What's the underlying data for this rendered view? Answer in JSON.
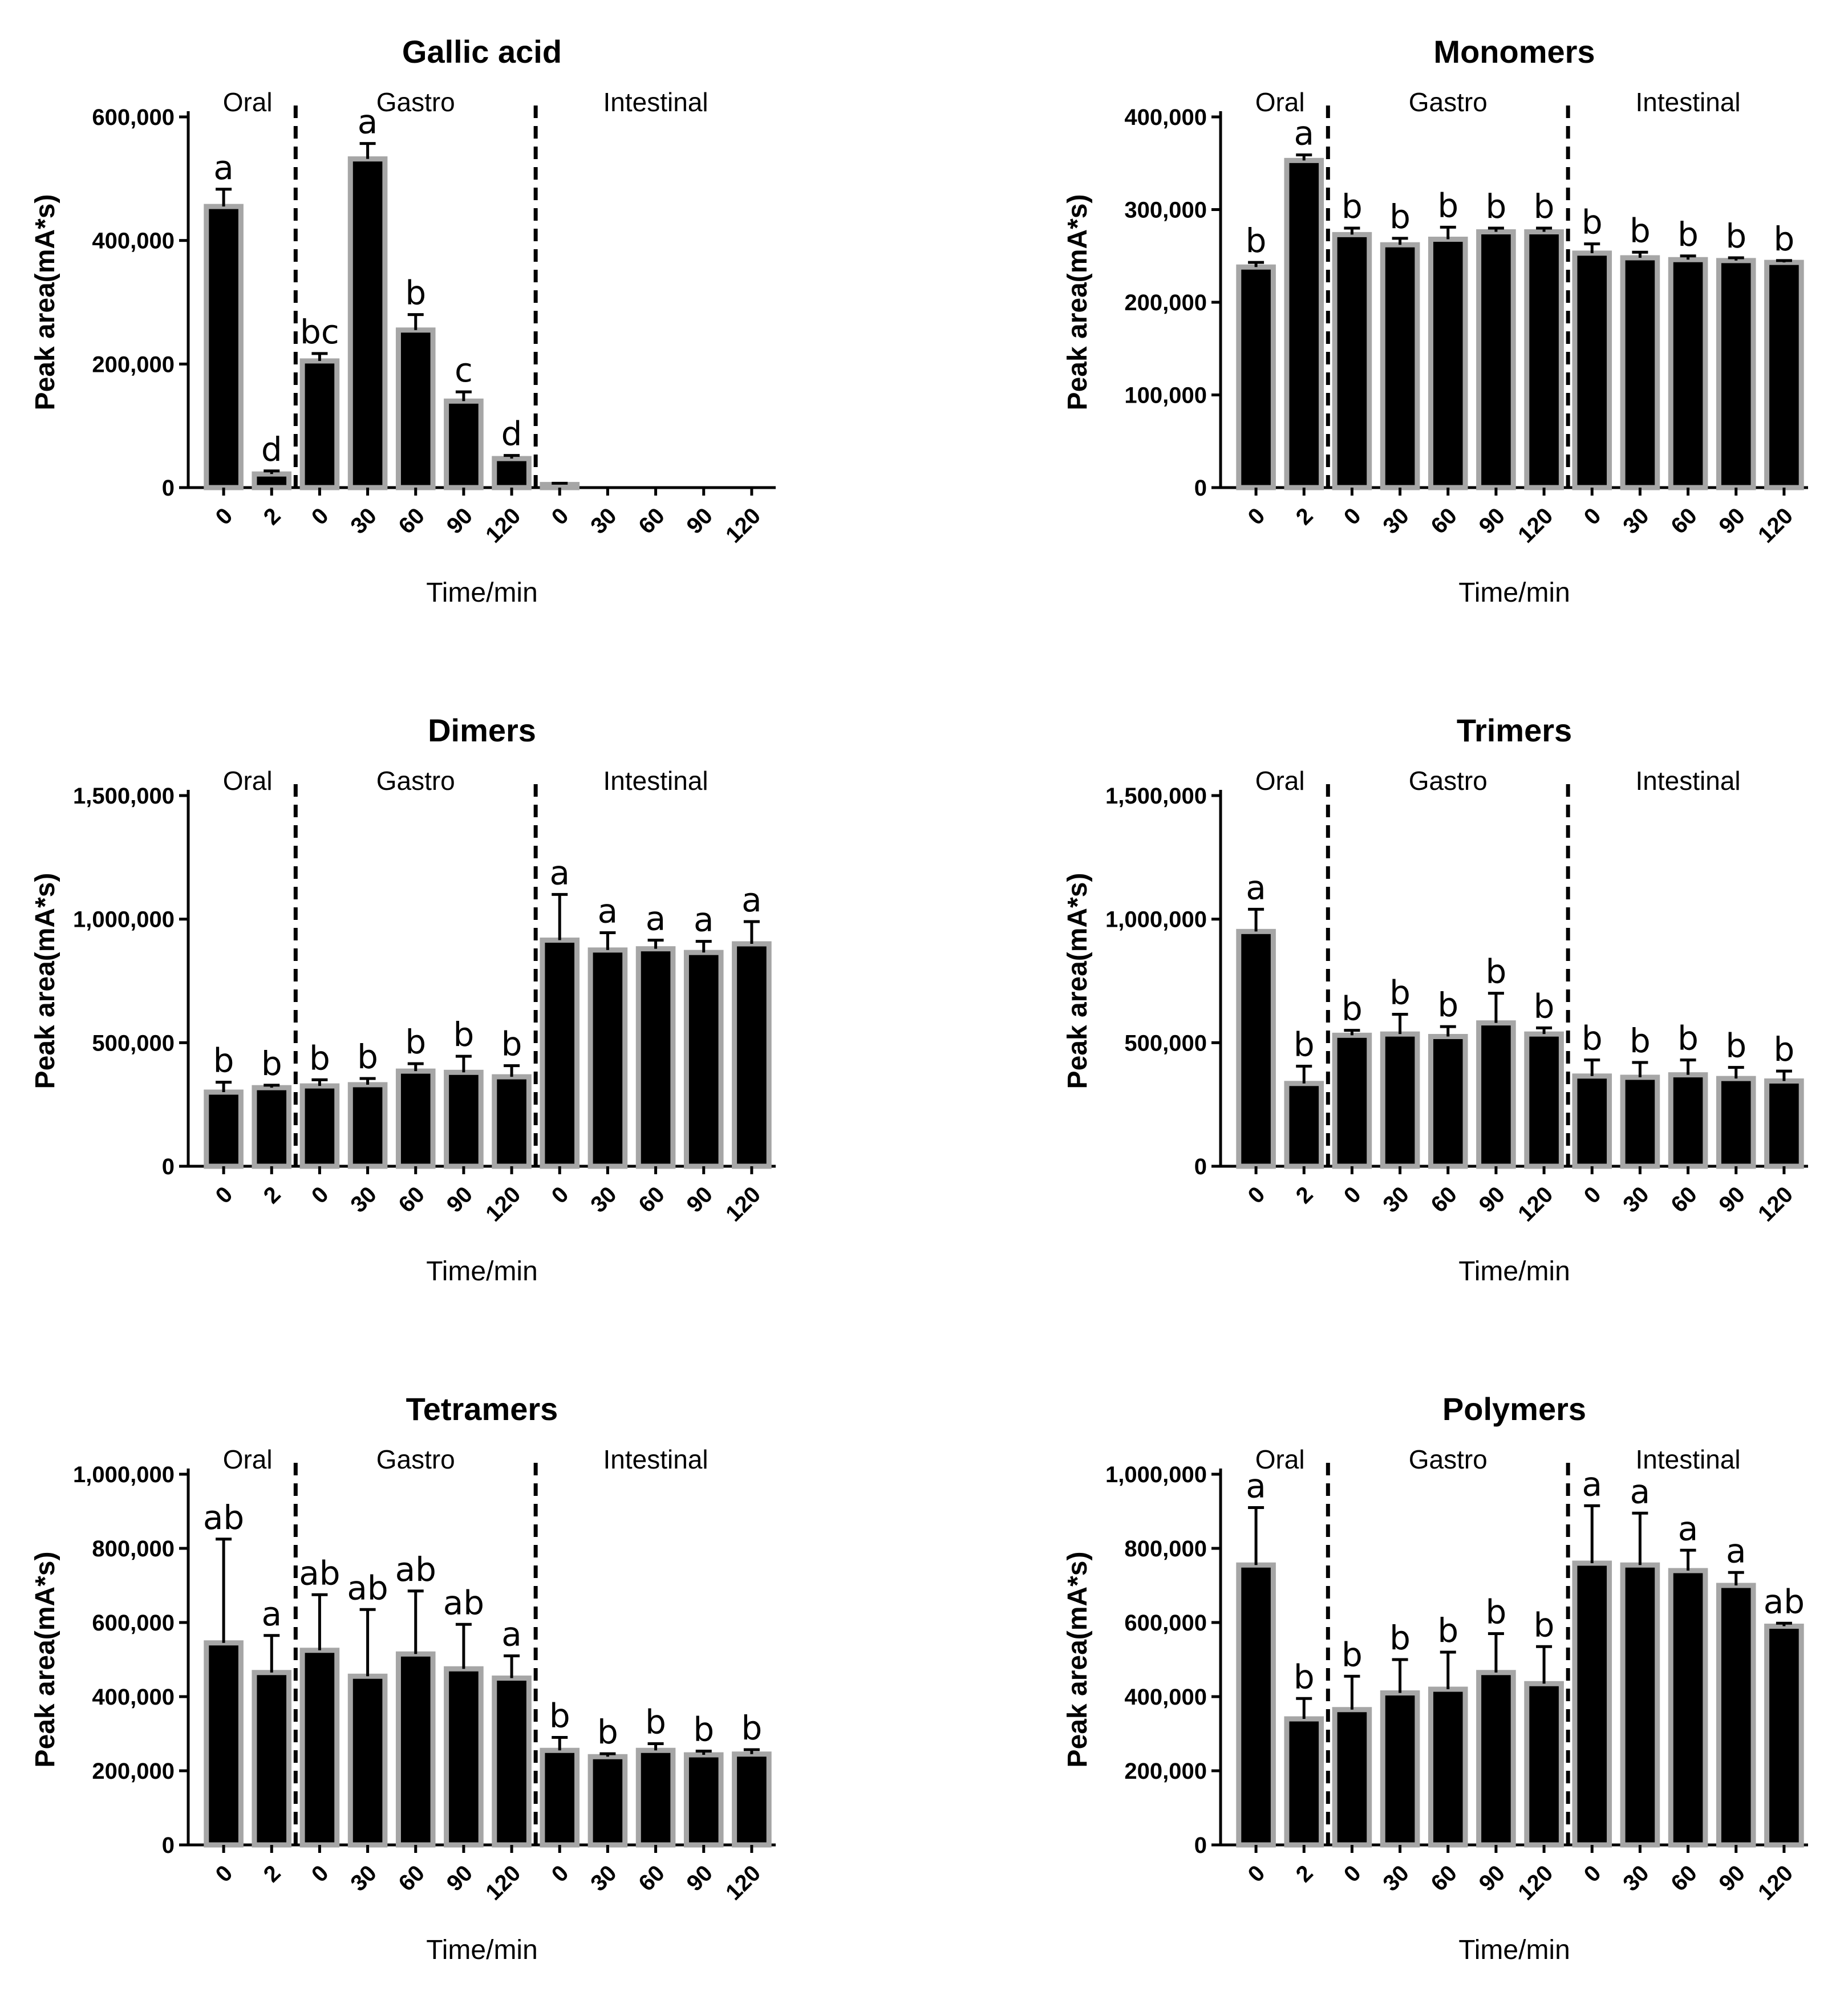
{
  "chart_data": [
    {
      "type": "bar",
      "title": "Gallic acid",
      "xlabel": "Time/min",
      "ylabel": "Peak area(mA*s)",
      "ylim": [
        0,
        600000
      ],
      "yticks": [
        "0",
        "200,000",
        "400,000",
        "600,000"
      ],
      "ytick_values": [
        0,
        200000,
        400000,
        600000
      ],
      "phases": [
        "Oral",
        "Gastro",
        "Intestinal"
      ],
      "categories": [
        "0",
        "2",
        "0",
        "30",
        "60",
        "90",
        "120",
        "0",
        "30",
        "60",
        "90",
        "120"
      ],
      "values": [
        455000,
        22000,
        205000,
        532000,
        255000,
        140000,
        47000,
        5000,
        0,
        0,
        0,
        0
      ],
      "errors": [
        28000,
        5000,
        12000,
        25000,
        25000,
        15000,
        5000,
        2000,
        0,
        0,
        0,
        0
      ],
      "letters": [
        "a",
        "d",
        "bc",
        "a",
        "b",
        "c",
        "d",
        "",
        "",
        "",
        "",
        ""
      ]
    },
    {
      "type": "bar",
      "title": "Monomers",
      "xlabel": "Time/min",
      "ylabel": "Peak area(mA*s)",
      "ylim": [
        0,
        400000
      ],
      "yticks": [
        "0",
        "100,000",
        "200,000",
        "300,000",
        "400,000"
      ],
      "ytick_values": [
        0,
        100000,
        200000,
        300000,
        400000
      ],
      "phases": [
        "Oral",
        "Gastro",
        "Intestinal"
      ],
      "categories": [
        "0",
        "2",
        "0",
        "30",
        "60",
        "90",
        "120",
        "0",
        "30",
        "60",
        "90",
        "120"
      ],
      "values": [
        238000,
        353000,
        273000,
        262000,
        268000,
        276000,
        276000,
        253000,
        248000,
        246000,
        245000,
        243000
      ],
      "errors": [
        5000,
        6000,
        7000,
        7000,
        13000,
        4000,
        4000,
        10000,
        6000,
        4000,
        3000,
        2000
      ],
      "letters": [
        "b",
        "a",
        "b",
        "b",
        "b",
        "b",
        "b",
        "b",
        "b",
        "b",
        "b",
        "b"
      ]
    },
    {
      "type": "bar",
      "title": "Dimers",
      "xlabel": "Time/min",
      "ylabel": "Peak area(mA*s)",
      "ylim": [
        0,
        1500000
      ],
      "yticks": [
        "0",
        "500,000",
        "1,000,000",
        "1,500,000"
      ],
      "ytick_values": [
        0,
        500000,
        1000000,
        1500000
      ],
      "phases": [
        "Oral",
        "Gastro",
        "Intestinal"
      ],
      "categories": [
        "0",
        "2",
        "0",
        "30",
        "60",
        "90",
        "120",
        "0",
        "30",
        "60",
        "90",
        "120"
      ],
      "values": [
        300000,
        318000,
        325000,
        330000,
        385000,
        380000,
        362000,
        915000,
        875000,
        880000,
        865000,
        900000
      ],
      "errors": [
        40000,
        10000,
        25000,
        25000,
        30000,
        65000,
        45000,
        185000,
        70000,
        35000,
        45000,
        90000
      ],
      "letters": [
        "b",
        "b",
        "b",
        "b",
        "b",
        "b",
        "b",
        "a",
        "a",
        "a",
        "a",
        "a"
      ]
    },
    {
      "type": "bar",
      "title": "Trimers",
      "xlabel": "Time/min",
      "ylabel": "Peak area(mA*s)",
      "ylim": [
        0,
        1500000
      ],
      "yticks": [
        "0",
        "500,000",
        "1,000,000",
        "1,500,000"
      ],
      "ytick_values": [
        0,
        500000,
        1000000,
        1500000
      ],
      "phases": [
        "Oral",
        "Gastro",
        "Intestinal"
      ],
      "categories": [
        "0",
        "2",
        "0",
        "30",
        "60",
        "90",
        "120",
        "0",
        "30",
        "60",
        "90",
        "120"
      ],
      "values": [
        950000,
        335000,
        530000,
        535000,
        525000,
        580000,
        535000,
        365000,
        360000,
        370000,
        355000,
        345000
      ],
      "errors": [
        90000,
        70000,
        20000,
        80000,
        40000,
        120000,
        25000,
        65000,
        60000,
        60000,
        45000,
        40000
      ],
      "letters": [
        "a",
        "b",
        "b",
        "b",
        "b",
        "b",
        "b",
        "b",
        "b",
        "b",
        "b",
        "b"
      ]
    },
    {
      "type": "bar",
      "title": "Tetramers",
      "xlabel": "Time/min",
      "ylabel": "Peak area(mA*s)",
      "ylim": [
        0,
        1000000
      ],
      "yticks": [
        "0",
        "200,000",
        "400,000",
        "600,000",
        "800,000",
        "1,000,000"
      ],
      "ytick_values": [
        0,
        200000,
        400000,
        600000,
        800000,
        1000000
      ],
      "phases": [
        "Oral",
        "Gastro",
        "Intestinal"
      ],
      "categories": [
        "0",
        "2",
        "0",
        "30",
        "60",
        "90",
        "120",
        "0",
        "30",
        "60",
        "90",
        "120"
      ],
      "values": [
        545000,
        465000,
        525000,
        455000,
        515000,
        475000,
        450000,
        255000,
        238000,
        255000,
        243000,
        245000
      ],
      "errors": [
        280000,
        100000,
        150000,
        180000,
        170000,
        120000,
        60000,
        35000,
        8000,
        18000,
        10000,
        12000
      ],
      "letters": [
        "ab",
        "a",
        "ab",
        "ab",
        "ab",
        "ab",
        "a",
        "b",
        "b",
        "b",
        "b",
        "b"
      ]
    },
    {
      "type": "bar",
      "title": "Polymers",
      "xlabel": "Time/min",
      "ylabel": "Peak area(mA*s)",
      "ylim": [
        0,
        1000000
      ],
      "yticks": [
        "0",
        "200,000",
        "400,000",
        "600,000",
        "800,000",
        "1,000,000"
      ],
      "ytick_values": [
        0,
        200000,
        400000,
        600000,
        800000,
        1000000
      ],
      "phases": [
        "Oral",
        "Gastro",
        "Intestinal"
      ],
      "categories": [
        "0",
        "2",
        "0",
        "30",
        "60",
        "90",
        "120",
        "0",
        "30",
        "60",
        "90",
        "120"
      ],
      "values": [
        755000,
        340000,
        365000,
        410000,
        420000,
        465000,
        435000,
        760000,
        755000,
        740000,
        700000,
        590000
      ],
      "errors": [
        155000,
        55000,
        90000,
        90000,
        100000,
        105000,
        100000,
        155000,
        140000,
        55000,
        35000,
        8000
      ],
      "letters": [
        "a",
        "b",
        "b",
        "b",
        "b",
        "b",
        "b",
        "a",
        "a",
        "a",
        "a",
        "ab"
      ]
    }
  ]
}
